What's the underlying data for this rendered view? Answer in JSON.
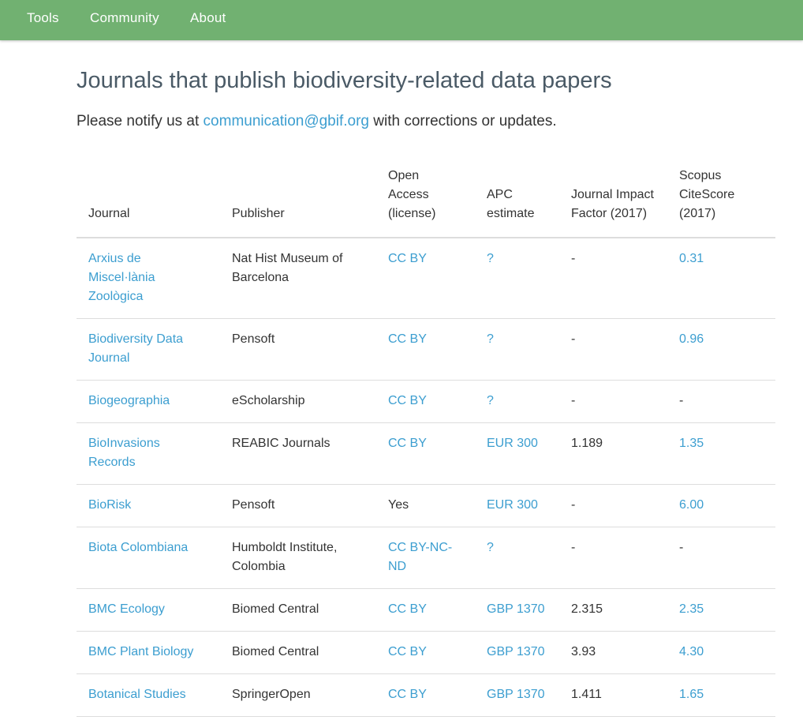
{
  "nav": {
    "items": [
      "Tools",
      "Community",
      "About"
    ]
  },
  "page": {
    "title": "Journals that publish biodiversity-related data papers",
    "notice_prefix": "Please notify us at ",
    "notice_email": "communication@gbif.org",
    "notice_suffix": " with corrections or updates."
  },
  "colors": {
    "nav_bg": "#71b171",
    "link": "#3c9ed0",
    "heading": "#4a5a66"
  },
  "table": {
    "headers": {
      "journal": "Journal",
      "publisher": "Publisher",
      "open_access": "Open Access (license)",
      "apc": "APC estimate",
      "jif": "Journal Impact Factor (2017)",
      "citescore": "Scopus CiteScore (2017)"
    },
    "rows": [
      {
        "journal": "Arxius de Miscel·lània Zoològica",
        "publisher": "Nat Hist Museum of Barcelona",
        "open_access": "CC BY",
        "apc": "?",
        "jif": "-",
        "citescore": "0.31"
      },
      {
        "journal": "Biodiversity Data Journal",
        "publisher": "Pensoft",
        "open_access": "CC BY",
        "apc": "?",
        "jif": "-",
        "citescore": "0.96"
      },
      {
        "journal": "Biogeographia",
        "publisher": "eScholarship",
        "open_access": "CC BY",
        "apc": "?",
        "jif": "-",
        "citescore": "-"
      },
      {
        "journal": "BioInvasions Records",
        "publisher": "REABIC Journals",
        "open_access": "CC BY",
        "apc": "EUR 300",
        "jif": "1.189",
        "citescore": "1.35"
      },
      {
        "journal": "BioRisk",
        "publisher": "Pensoft",
        "open_access": "Yes",
        "apc": "EUR 300",
        "jif": "-",
        "citescore": "6.00"
      },
      {
        "journal": "Biota Colombiana",
        "publisher": "Humboldt Institute, Colombia",
        "open_access": "CC BY-NC-ND",
        "apc": "?",
        "jif": "-",
        "citescore": "-"
      },
      {
        "journal": "BMC Ecology",
        "publisher": "Biomed Central",
        "open_access": "CC BY",
        "apc": "GBP 1370",
        "jif": "2.315",
        "citescore": "2.35"
      },
      {
        "journal": "BMC Plant Biology",
        "publisher": "Biomed Central",
        "open_access": "CC BY",
        "apc": "GBP 1370",
        "jif": "3.93",
        "citescore": "4.30"
      },
      {
        "journal": "Botanical Studies",
        "publisher": "SpringerOpen",
        "open_access": "CC BY",
        "apc": "GBP 1370",
        "jif": "1.411",
        "citescore": "1.65"
      }
    ]
  }
}
